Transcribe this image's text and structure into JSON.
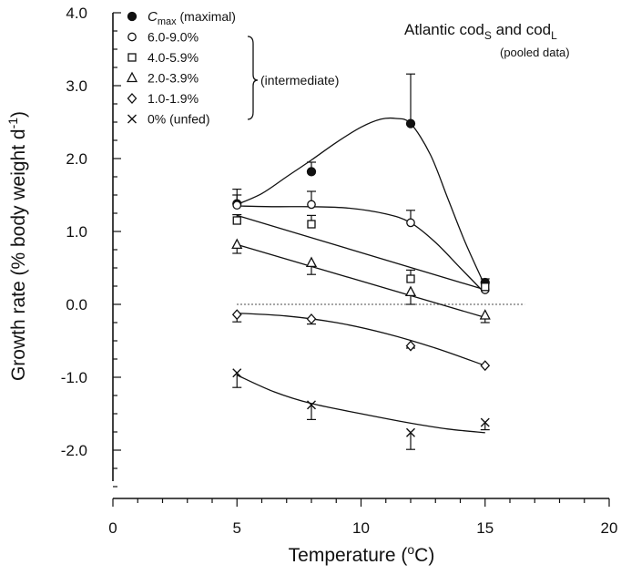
{
  "chart_data": {
    "type": "scatter",
    "title": "",
    "annotation": {
      "line1": "Atlantic cod",
      "sub1": "S",
      "and": " and  cod",
      "sub2": "L",
      "line2": "(pooled data)"
    },
    "xlabel": {
      "text": "Temperature (",
      "sup": "o",
      "tail": "C)"
    },
    "ylabel": {
      "text": "Growth rate (% body weight  d",
      "sup": "-1",
      "tail": ")"
    },
    "xlim": [
      0,
      20
    ],
    "ylim": [
      -2.5,
      4.0
    ],
    "x_ticks": [
      0,
      5,
      10,
      15,
      20
    ],
    "x_tick_labels": [
      "0",
      "5",
      "10",
      "15",
      "20"
    ],
    "y_ticks": [
      4.0,
      3.0,
      2.0,
      1.0,
      0.0,
      -1.0,
      -2.0
    ],
    "y_tick_labels": [
      "4.0",
      "3.0",
      "2.0",
      "1.0",
      "0.0",
      "-1.0",
      "-2.0"
    ],
    "reference_line_y": 0.0,
    "legend_bracket_label": "(intermediate)",
    "series": [
      {
        "name": "C",
        "name_sub": "max",
        "name_tail": " (maximal)",
        "marker": "filled-circle",
        "x": [
          5,
          8,
          12,
          15
        ],
        "y": [
          1.38,
          1.82,
          2.48,
          0.3
        ],
        "err_up": [
          0.2,
          0.13,
          0.68,
          0.05
        ],
        "err_down": [
          0,
          0,
          0,
          0
        ],
        "curve": [
          [
            5,
            1.37
          ],
          [
            6,
            1.52
          ],
          [
            7,
            1.75
          ],
          [
            8,
            1.98
          ],
          [
            9,
            2.22
          ],
          [
            10,
            2.43
          ],
          [
            10.8,
            2.54
          ],
          [
            11.4,
            2.55
          ],
          [
            12,
            2.48
          ],
          [
            12.8,
            2.05
          ],
          [
            13.5,
            1.45
          ],
          [
            14.2,
            0.85
          ],
          [
            15,
            0.25
          ]
        ]
      },
      {
        "name": "6.0-9.0%",
        "marker": "open-circle",
        "x": [
          5,
          8,
          12,
          15
        ],
        "y": [
          1.36,
          1.37,
          1.12,
          0.2
        ],
        "err_up": [
          0.14,
          0.18,
          0.17,
          0
        ],
        "err_down": [
          0,
          0,
          0,
          0
        ],
        "curve": [
          [
            5,
            1.35
          ],
          [
            6.5,
            1.34
          ],
          [
            8,
            1.34
          ],
          [
            9.5,
            1.32
          ],
          [
            11,
            1.24
          ],
          [
            12,
            1.12
          ],
          [
            13,
            0.85
          ],
          [
            14,
            0.5
          ],
          [
            15,
            0.15
          ]
        ]
      },
      {
        "name": "4.0-5.9%",
        "marker": "open-square",
        "x": [
          5,
          8,
          12,
          15
        ],
        "y": [
          1.15,
          1.1,
          0.35,
          0.24
        ],
        "err_up": [
          0.08,
          0.12,
          0.12,
          0
        ],
        "err_down": [
          0,
          0,
          0,
          0
        ],
        "curve": [
          [
            5,
            1.22
          ],
          [
            15,
            0.2
          ]
        ]
      },
      {
        "name": "2.0-3.9%",
        "marker": "open-triangle",
        "x": [
          5,
          8,
          12,
          15
        ],
        "y": [
          0.82,
          0.57,
          0.17,
          -0.15
        ],
        "err_up": [
          0,
          0,
          0,
          0
        ],
        "err_down": [
          0.12,
          0.16,
          0.17,
          0.1
        ],
        "curve": [
          [
            5,
            0.82
          ],
          [
            15,
            -0.18
          ]
        ]
      },
      {
        "name": "1.0-1.9%",
        "marker": "open-diamond",
        "x": [
          5,
          8,
          12,
          15
        ],
        "y": [
          -0.14,
          -0.2,
          -0.57,
          -0.84
        ],
        "err_up": [
          0,
          0,
          0,
          0
        ],
        "err_down": [
          0.1,
          0.07,
          0.03,
          0
        ],
        "curve": [
          [
            5,
            -0.12
          ],
          [
            7,
            -0.16
          ],
          [
            9,
            -0.25
          ],
          [
            11,
            -0.4
          ],
          [
            13,
            -0.6
          ],
          [
            15,
            -0.84
          ]
        ]
      },
      {
        "name": "0% (unfed)",
        "marker": "cross",
        "x": [
          5,
          8,
          12,
          15
        ],
        "y": [
          -0.94,
          -1.38,
          -1.76,
          -1.62
        ],
        "err_up": [
          0,
          0,
          0,
          0
        ],
        "err_down": [
          0.2,
          0.2,
          0.23,
          0.1
        ],
        "curve": [
          [
            5,
            -0.97
          ],
          [
            6.5,
            -1.2
          ],
          [
            8,
            -1.36
          ],
          [
            10,
            -1.5
          ],
          [
            12,
            -1.63
          ],
          [
            13.5,
            -1.71
          ],
          [
            15,
            -1.76
          ]
        ]
      }
    ],
    "legend_placement": "top-left"
  }
}
